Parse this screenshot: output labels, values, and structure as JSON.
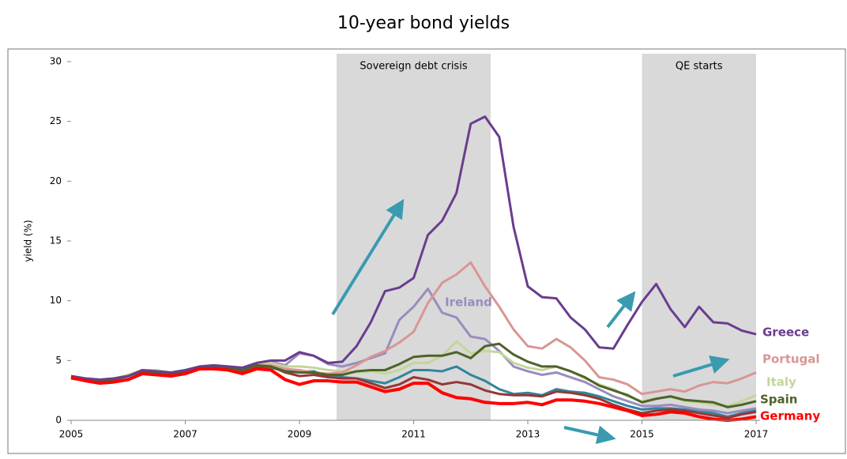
{
  "chart_data": {
    "type": "line",
    "title": "10-year bond yields",
    "y_label": "yield (%)",
    "x": [
      2005,
      2005.25,
      2005.5,
      2005.75,
      2006,
      2006.25,
      2006.5,
      2006.75,
      2007,
      2007.25,
      2007.5,
      2007.75,
      2008,
      2008.25,
      2008.5,
      2008.75,
      2009,
      2009.25,
      2009.5,
      2009.75,
      2010,
      2010.25,
      2010.5,
      2010.75,
      2011,
      2011.25,
      2011.5,
      2011.75,
      2012,
      2012.25,
      2012.5,
      2012.75,
      2013,
      2013.25,
      2013.5,
      2013.75,
      2014,
      2014.25,
      2014.5,
      2014.75,
      2015,
      2015.25,
      2015.5,
      2015.75,
      2016,
      2016.25,
      2016.5,
      2016.75,
      2017
    ],
    "xlim": [
      2005,
      2017
    ],
    "xticks": [
      2005,
      2007,
      2009,
      2011,
      2013,
      2015,
      2017
    ],
    "ylim": [
      0,
      30
    ],
    "yticks": [
      0,
      5,
      10,
      15,
      20,
      25,
      30
    ],
    "shaded_regions": [
      {
        "label": "Sovereign debt crisis",
        "x": [
          2009.65,
          2012.35
        ]
      },
      {
        "label": "QE starts",
        "x": [
          2015,
          2017
        ]
      }
    ],
    "series": [
      {
        "color": "#31859c",
        "values": [
          3.6,
          3.4,
          3.2,
          3.3,
          3.6,
          4.0,
          4.0,
          3.9,
          4.1,
          4.4,
          4.4,
          4.3,
          4.1,
          4.4,
          4.4,
          4.1,
          4.1,
          4.1,
          3.7,
          3.6,
          3.5,
          3.3,
          3.1,
          3.6,
          4.2,
          4.2,
          4.1,
          4.5,
          3.8,
          3.3,
          2.6,
          2.2,
          2.3,
          2.1,
          2.6,
          2.4,
          2.3,
          2.0,
          1.6,
          1.2,
          0.9,
          1.0,
          1.0,
          0.9,
          0.8,
          0.6,
          0.3,
          0.6,
          0.9
        ]
      },
      {
        "color": "#953735",
        "values": [
          3.5,
          3.3,
          3.2,
          3.3,
          3.6,
          4.0,
          3.9,
          3.8,
          4.0,
          4.4,
          4.4,
          4.3,
          4.1,
          4.5,
          4.5,
          4.0,
          3.7,
          3.8,
          3.6,
          3.5,
          3.5,
          3.1,
          2.7,
          3.0,
          3.6,
          3.4,
          3.0,
          3.2,
          3.0,
          2.5,
          2.2,
          2.1,
          2.1,
          2.0,
          2.4,
          2.3,
          2.1,
          1.8,
          1.3,
          0.9,
          0.6,
          0.8,
          0.9,
          0.8,
          0.6,
          0.4,
          0.2,
          0.5,
          0.7
        ]
      },
      {
        "name": "Ireland",
        "color": "#9a8cbf",
        "values": [
          3.6,
          3.4,
          3.2,
          3.3,
          3.6,
          4.0,
          4.0,
          3.9,
          4.1,
          4.5,
          4.5,
          4.5,
          4.3,
          4.8,
          4.9,
          4.6,
          5.6,
          5.4,
          4.7,
          4.5,
          4.8,
          5.2,
          5.6,
          8.4,
          9.5,
          11.0,
          9.0,
          8.6,
          7.0,
          6.8,
          5.8,
          4.5,
          4.1,
          3.8,
          4.0,
          3.6,
          3.2,
          2.6,
          2.0,
          1.6,
          1.2,
          1.2,
          1.3,
          1.1,
          0.9,
          0.8,
          0.6,
          0.8,
          1.0
        ]
      },
      {
        "name": "Italy",
        "color": "#c3d69b",
        "values": [
          3.7,
          3.5,
          3.4,
          3.5,
          3.8,
          4.2,
          4.2,
          4.0,
          4.2,
          4.5,
          4.6,
          4.5,
          4.4,
          4.7,
          4.8,
          4.5,
          4.5,
          4.4,
          4.2,
          4.1,
          4.0,
          4.1,
          3.9,
          4.2,
          4.8,
          4.8,
          5.4,
          6.6,
          5.6,
          5.8,
          5.7,
          4.8,
          4.4,
          4.2,
          4.5,
          4.1,
          3.5,
          3.0,
          2.6,
          2.0,
          1.6,
          1.8,
          2.0,
          1.6,
          1.5,
          1.3,
          1.2,
          1.6,
          2.1
        ]
      },
      {
        "name": "Portugal",
        "color": "#d99694",
        "values": [
          3.6,
          3.4,
          3.3,
          3.4,
          3.7,
          4.1,
          4.0,
          3.9,
          4.1,
          4.4,
          4.5,
          4.4,
          4.2,
          4.6,
          4.6,
          4.3,
          4.2,
          4.0,
          3.9,
          4.0,
          4.6,
          5.3,
          5.8,
          6.5,
          7.4,
          9.8,
          11.5,
          12.2,
          13.2,
          11.2,
          9.5,
          7.6,
          6.2,
          6.0,
          6.8,
          6.1,
          5.0,
          3.6,
          3.4,
          3.0,
          2.2,
          2.4,
          2.6,
          2.4,
          2.9,
          3.2,
          3.1,
          3.5,
          4.0
        ]
      },
      {
        "name": "Spain",
        "color": "#4f6228",
        "values": [
          3.6,
          3.4,
          3.3,
          3.4,
          3.7,
          4.1,
          4.0,
          3.9,
          4.1,
          4.4,
          4.5,
          4.4,
          4.2,
          4.6,
          4.5,
          4.1,
          4.0,
          4.0,
          3.8,
          3.8,
          4.1,
          4.2,
          4.2,
          4.7,
          5.3,
          5.4,
          5.4,
          5.7,
          5.2,
          6.2,
          6.4,
          5.5,
          4.9,
          4.5,
          4.5,
          4.1,
          3.6,
          2.9,
          2.5,
          2.1,
          1.5,
          1.8,
          2.0,
          1.7,
          1.6,
          1.5,
          1.1,
          1.3,
          1.6
        ]
      },
      {
        "name": "Greece",
        "color": "#6a3d8f",
        "values": [
          3.7,
          3.5,
          3.4,
          3.5,
          3.7,
          4.2,
          4.1,
          4.0,
          4.2,
          4.5,
          4.6,
          4.5,
          4.4,
          4.8,
          5.0,
          5.0,
          5.7,
          5.4,
          4.8,
          4.9,
          6.2,
          8.2,
          10.8,
          11.1,
          11.9,
          15.5,
          16.7,
          19.0,
          24.8,
          25.4,
          23.7,
          16.2,
          11.2,
          10.3,
          10.2,
          8.6,
          7.6,
          6.1,
          6.0,
          8.0,
          9.9,
          11.4,
          9.3,
          7.8,
          9.5,
          8.2,
          8.1,
          7.5,
          7.2
        ]
      },
      {
        "name": "Germany",
        "color": "#ff0000",
        "values": [
          3.6,
          3.3,
          3.1,
          3.2,
          3.4,
          3.9,
          3.8,
          3.7,
          3.9,
          4.3,
          4.3,
          4.2,
          3.9,
          4.3,
          4.2,
          3.4,
          3.0,
          3.3,
          3.3,
          3.2,
          3.2,
          2.8,
          2.4,
          2.6,
          3.1,
          3.1,
          2.3,
          1.9,
          1.8,
          1.5,
          1.4,
          1.4,
          1.5,
          1.3,
          1.7,
          1.7,
          1.6,
          1.4,
          1.1,
          0.8,
          0.4,
          0.5,
          0.7,
          0.6,
          0.3,
          0.1,
          0.0,
          0.1,
          0.3
        ]
      }
    ]
  }
}
